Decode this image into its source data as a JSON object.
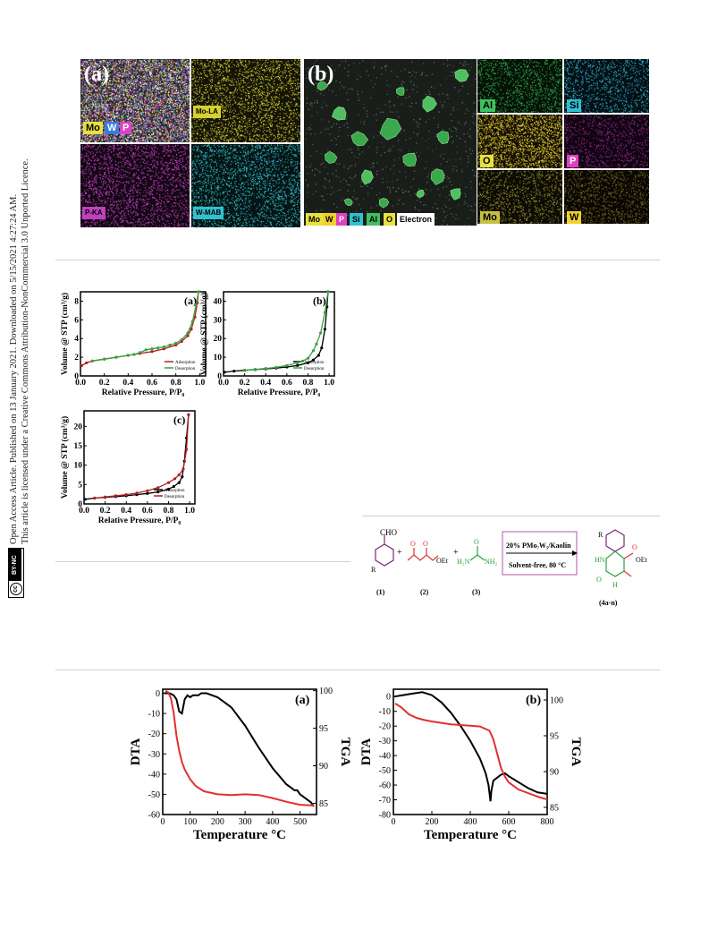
{
  "license": {
    "line1": "Open Access Article. Published on 13 January 2021. Downloaded on 5/15/2021 4:27:24 AM.",
    "line2": "This article is licensed under a Creative Commons Attribution-NonCommercial 3.0 Unported Licence.",
    "badge_cc": "cc",
    "badge_text": "BY-NC"
  },
  "sem_figure": {
    "panel_a": "(a)",
    "panel_b": "(b)",
    "a_tiles": [
      {
        "label": "",
        "colors": [
          "#e8e040",
          "#3d7be0",
          "#e040c0",
          "#ffffff"
        ],
        "base": "#2a2a2a"
      },
      {
        "label": "Mo-LA",
        "colors": [
          "#d8d030"
        ],
        "base": "#141408"
      },
      {
        "label": "P-KA",
        "colors": [
          "#c040c0"
        ],
        "base": "#140814"
      },
      {
        "label": "W-MAB",
        "colors": [
          "#30c0d0"
        ],
        "base": "#061414"
      }
    ],
    "a_legend": [
      {
        "text": "Mo",
        "bg": "#e8e040",
        "fg": "#000"
      },
      {
        "text": "W",
        "bg": "#3d7be0",
        "fg": "#fff"
      },
      {
        "text": "P",
        "bg": "#e040c0",
        "fg": "#fff"
      }
    ],
    "b_legend": [
      {
        "text": "Mo",
        "bg": "#e8e040",
        "fg": "#000"
      },
      {
        "text": "W",
        "bg": "#f2d030",
        "fg": "#000"
      },
      {
        "text": "P",
        "bg": "#e040c0",
        "fg": "#fff"
      },
      {
        "text": "Si",
        "bg": "#30c0d0",
        "fg": "#000"
      },
      {
        "text": "Al",
        "bg": "#40c060",
        "fg": "#000"
      },
      {
        "text": "O",
        "bg": "#e8e040",
        "fg": "#000"
      },
      {
        "text": "Electron",
        "bg": "#ffffff",
        "fg": "#000"
      }
    ],
    "b_tiles": [
      {
        "label": "Al",
        "colors": [
          "#30b050"
        ],
        "base": "#061206",
        "labbg": "#40c060",
        "labfg": "#000"
      },
      {
        "label": "Si",
        "colors": [
          "#30b0d0"
        ],
        "base": "#041014",
        "labbg": "#30c0d0",
        "labfg": "#000"
      },
      {
        "label": "O",
        "colors": [
          "#d8c030"
        ],
        "base": "#141004",
        "labbg": "#e8e040",
        "labfg": "#000"
      },
      {
        "label": "P",
        "colors": [
          "#8a2a8a"
        ],
        "base": "#100410",
        "labbg": "#e040c0",
        "labfg": "#fff"
      },
      {
        "label": "Mo",
        "colors": [
          "#9a9030"
        ],
        "base": "#0c0c04",
        "labbg": "#c8c040",
        "labfg": "#000"
      },
      {
        "label": "W",
        "colors": [
          "#7a6a20"
        ],
        "base": "#0a0804",
        "labbg": "#f2d030",
        "labfg": "#000"
      }
    ]
  },
  "colors": {
    "adsorption_red": "#b02020",
    "desorption_green": "#3aa040",
    "black": "#000000",
    "tga_red": "#e03030",
    "scheme_red": "#e03030",
    "scheme_green": "#2aa040",
    "scheme_purple": "#7a2a7a",
    "scheme_box": "#c070c0"
  },
  "bet_shared": {
    "ylabel": "Volume @ STP (cm³/g)",
    "xlabel": "Relative Pressure, P/P₀",
    "legend_ads": "Adsorption",
    "legend_des": "Desorption"
  },
  "chart_data": [
    {
      "type": "line",
      "panel": "(a)",
      "xlabel": "Relative Pressure, P/P₀",
      "ylabel": "Volume @ STP (cm³/g)",
      "xlim": [
        0.0,
        1.05
      ],
      "ylim": [
        0,
        9
      ],
      "xticks": [
        "0.0",
        "0.2",
        "0.4",
        "0.6",
        "0.8",
        "1.0"
      ],
      "yticks": [
        "0",
        "2",
        "4",
        "6",
        "8"
      ],
      "legend_position": "bottom-right",
      "series": [
        {
          "name": "Adsorption",
          "color": "#b02020",
          "x": [
            0.01,
            0.05,
            0.1,
            0.2,
            0.3,
            0.4,
            0.5,
            0.6,
            0.7,
            0.8,
            0.85,
            0.9,
            0.93,
            0.96,
            0.98,
            0.99
          ],
          "y": [
            1.1,
            1.4,
            1.6,
            1.8,
            2.0,
            2.2,
            2.4,
            2.6,
            2.9,
            3.3,
            3.7,
            4.3,
            5.0,
            6.3,
            7.8,
            9.0
          ]
        },
        {
          "name": "Desorption",
          "color": "#3aa040",
          "x": [
            0.99,
            0.97,
            0.94,
            0.9,
            0.85,
            0.8,
            0.75,
            0.7,
            0.65,
            0.6,
            0.55,
            0.5,
            0.45,
            0.4,
            0.3,
            0.2,
            0.1
          ],
          "y": [
            9.0,
            7.6,
            5.8,
            4.6,
            3.9,
            3.5,
            3.3,
            3.1,
            3.0,
            2.9,
            2.8,
            2.5,
            2.3,
            2.2,
            2.0,
            1.8,
            1.6
          ]
        }
      ]
    },
    {
      "type": "line",
      "panel": "(b)",
      "xlabel": "Relative Pressure, P/P₀",
      "ylabel": "Volume @ STP (cm³/g)",
      "xlim": [
        0.0,
        1.05
      ],
      "ylim": [
        0,
        45
      ],
      "xticks": [
        "0.0",
        "0.2",
        "0.4",
        "0.6",
        "0.8",
        "1.0"
      ],
      "yticks": [
        "0",
        "10",
        "20",
        "30",
        "40"
      ],
      "legend_position": "bottom-right",
      "series": [
        {
          "name": "Adsorption",
          "color": "#000000",
          "x": [
            0.01,
            0.1,
            0.2,
            0.3,
            0.4,
            0.5,
            0.6,
            0.7,
            0.8,
            0.85,
            0.9,
            0.93,
            0.96,
            0.98,
            0.99
          ],
          "y": [
            2.0,
            2.6,
            3.0,
            3.4,
            3.8,
            4.2,
            4.8,
            5.6,
            7.0,
            8.5,
            11.0,
            15.0,
            25.0,
            37.0,
            45.0
          ]
        },
        {
          "name": "Desorption",
          "color": "#3aa040",
          "x": [
            0.99,
            0.96,
            0.92,
            0.88,
            0.85,
            0.8,
            0.75,
            0.7,
            0.6,
            0.5,
            0.4,
            0.3,
            0.2
          ],
          "y": [
            45.0,
            34.0,
            23.0,
            17.0,
            13.5,
            9.5,
            8.0,
            7.0,
            5.6,
            4.6,
            4.0,
            3.5,
            3.0
          ]
        }
      ]
    },
    {
      "type": "line",
      "panel": "(c)",
      "xlabel": "Relative Pressure, P/P₀",
      "ylabel": "Volume @ STP (cm³/g)",
      "xlim": [
        0.0,
        1.05
      ],
      "ylim": [
        0,
        24
      ],
      "xticks": [
        "0.0",
        "0.2",
        "0.4",
        "0.6",
        "0.8",
        "1.0"
      ],
      "yticks": [
        "0",
        "5",
        "10",
        "15",
        "20"
      ],
      "legend_position": "bottom-right",
      "series": [
        {
          "name": "Adsorption",
          "color": "#000000",
          "x": [
            0.01,
            0.1,
            0.2,
            0.3,
            0.4,
            0.5,
            0.6,
            0.7,
            0.8,
            0.85,
            0.9,
            0.93,
            0.95,
            0.97,
            0.99
          ],
          "y": [
            1.2,
            1.5,
            1.7,
            1.9,
            2.1,
            2.4,
            2.7,
            3.1,
            3.8,
            4.5,
            5.5,
            7.0,
            11.0,
            17.0,
            23.0
          ]
        },
        {
          "name": "Desorption",
          "color": "#b02020",
          "x": [
            0.99,
            0.97,
            0.94,
            0.9,
            0.86,
            0.8,
            0.7,
            0.6,
            0.5,
            0.4,
            0.3,
            0.2,
            0.1
          ],
          "y": [
            23.0,
            14.0,
            9.0,
            7.5,
            6.5,
            5.5,
            4.2,
            3.4,
            2.8,
            2.4,
            2.1,
            1.8,
            1.5
          ]
        }
      ]
    },
    {
      "type": "line",
      "panel": "(a)",
      "xlabel": "Temperature °C",
      "ylabel": "DTA",
      "y2label": "TGA",
      "xlim": [
        0,
        560
      ],
      "ylim": [
        -60,
        2
      ],
      "y2lim": [
        83.5,
        100.2
      ],
      "xticks": [
        "0",
        "100",
        "200",
        "300",
        "400",
        "500"
      ],
      "yticks": [
        "0",
        "-10",
        "-20",
        "-30",
        "-40",
        "-50",
        "-60"
      ],
      "y2ticks": [
        "100",
        "95",
        "90",
        "85"
      ],
      "series": [
        {
          "name": "",
          "axis": "left",
          "color": "#000000",
          "x": [
            5,
            25,
            40,
            50,
            60,
            70,
            80,
            90,
            100,
            110,
            120,
            130,
            140,
            160,
            200,
            250,
            300,
            350,
            400,
            450,
            480,
            490,
            500,
            520,
            540,
            550
          ],
          "y": [
            0,
            0,
            -1,
            -3,
            -9,
            -10,
            -3,
            -1,
            -2,
            -1,
            -1,
            -1,
            0,
            0,
            -2,
            -7,
            -16,
            -27,
            -37,
            -45,
            -48,
            -48,
            -50,
            -52,
            -54,
            -56
          ]
        },
        {
          "name": "",
          "axis": "right",
          "color": "#e03030",
          "x": [
            10,
            20,
            30,
            40,
            50,
            60,
            70,
            80,
            100,
            120,
            150,
            200,
            250,
            300,
            350,
            400,
            450,
            500,
            550
          ],
          "y": [
            100,
            99.8,
            99,
            97,
            94,
            92,
            90.5,
            89.5,
            88.2,
            87.3,
            86.6,
            86.2,
            86.1,
            86.2,
            86.1,
            85.7,
            85.2,
            84.8,
            84.7
          ]
        }
      ]
    },
    {
      "type": "line",
      "panel": "(b)",
      "xlabel": "Temperature °C",
      "ylabel": "DTA",
      "y2label": "TGA",
      "xlim": [
        0,
        800
      ],
      "ylim": [
        -80,
        5
      ],
      "y2lim": [
        84,
        101.5
      ],
      "xticks": [
        "0",
        "200",
        "400",
        "600",
        "800"
      ],
      "yticks": [
        "0",
        "-10",
        "-20",
        "-30",
        "-40",
        "-50",
        "-60",
        "-70",
        "-80"
      ],
      "y2ticks": [
        "100",
        "95",
        "90",
        "85"
      ],
      "series": [
        {
          "name": "",
          "axis": "left",
          "color": "#000000",
          "x": [
            5,
            50,
            100,
            150,
            200,
            250,
            300,
            350,
            400,
            450,
            480,
            495,
            505,
            510,
            520,
            540,
            560,
            580,
            600,
            650,
            700,
            750,
            800
          ],
          "y": [
            0,
            1,
            2,
            3,
            1,
            -4,
            -11,
            -20,
            -30,
            -42,
            -52,
            -60,
            -71,
            -64,
            -57,
            -55,
            -53,
            -52,
            -54,
            -58,
            -62,
            -65,
            -66
          ]
        },
        {
          "name": "",
          "axis": "right",
          "color": "#e03030",
          "x": [
            10,
            40,
            80,
            120,
            160,
            200,
            250,
            300,
            350,
            400,
            450,
            500,
            520,
            540,
            560,
            580,
            600,
            650,
            700,
            750,
            800
          ],
          "y": [
            99.5,
            99,
            98,
            97.5,
            97.2,
            97.0,
            96.8,
            96.6,
            96.5,
            96.4,
            96.3,
            95.7,
            94.5,
            92.5,
            90.5,
            89.3,
            88.5,
            87.5,
            87.0,
            86.5,
            86.1
          ]
        }
      ]
    }
  ],
  "scheme": {
    "cho": "CHO",
    "r": "R",
    "plus": "+",
    "ester": "OEt",
    "h2n": "H₂N",
    "nh2": "NH₂",
    "o": "O",
    "condition_top": "20% PMo₇W₅/Kaolin",
    "condition_bottom": "Solvent-free, 80 °C",
    "product_hn": "HN",
    "product_h": "H",
    "product_o": "O",
    "product_oet": "OEt",
    "product_o2": "O",
    "labels": [
      "(1)",
      "(2)",
      "(3)",
      "(4a-n)"
    ]
  }
}
